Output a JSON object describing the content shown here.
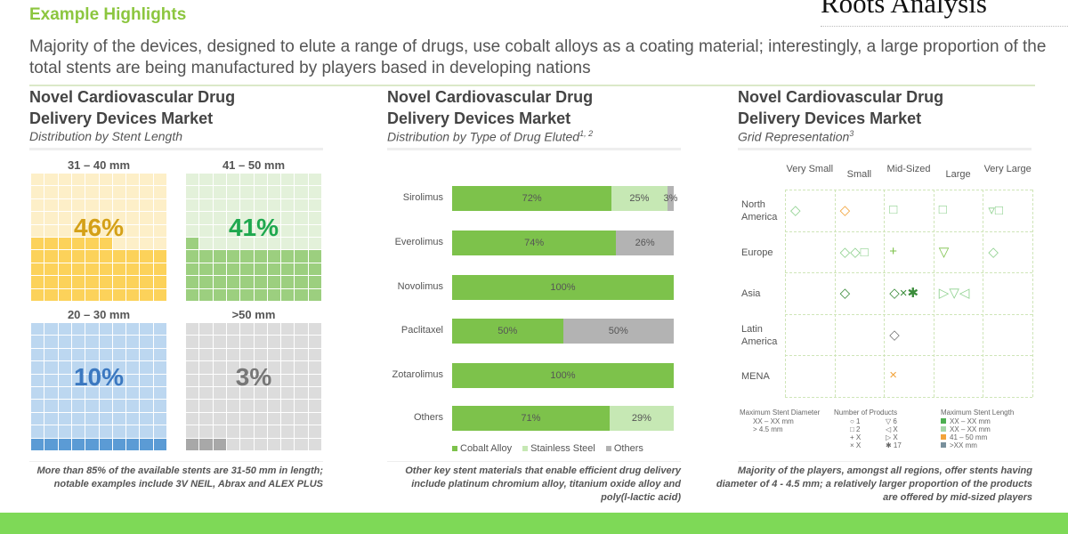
{
  "header": {
    "title": "Example Highlights",
    "logo_text": "Roots Analysis",
    "lead": "Majority of the devices, designed to elute a range of drugs, use cobalt alloys as a coating material; interestingly, a large proportion of the total stents are being manufactured by players based in developing nations"
  },
  "panels": [
    {
      "title1": "Novel Cardiovascular Drug",
      "title2": "Delivery Devices Market",
      "subtitle": "Distribution by Stent Length",
      "sup": "",
      "note": "More than 85% of the available stents are 31-50 mm in length; notable examples include 3V NEIL, Abrax and ALEX PLUS"
    },
    {
      "title1": "Novel Cardiovascular Drug",
      "title2": "Delivery Devices Market",
      "subtitle": "Distribution by Type of Drug Eluted",
      "sup": "1, 2",
      "note": "Other key stent materials that enable efficient drug delivery include platinum chromium alloy, titanium oxide alloy and poly(l-lactic acid)"
    },
    {
      "title1": "Novel Cardiovascular Drug",
      "title2": "Delivery Devices Market",
      "subtitle": "Grid Representation",
      "sup": "3",
      "note": "Majority of the players, amongst all regions, offer stents having diameter of 4 - 4.5 mm; a relatively larger proportion of the products are offered by mid-sized players"
    }
  ],
  "chart_data": [
    {
      "type": "waffle",
      "title": "Distribution by Stent Length",
      "categories": [
        {
          "label": "31 – 40 mm",
          "value": 46,
          "text": "46%",
          "fill": "#fcd25a",
          "empty": "#fdefc8",
          "textColor": "#d4a017"
        },
        {
          "label": "41 – 50 mm",
          "value": 41,
          "text": "41%",
          "fill": "#9ccf7f",
          "empty": "#e3f1da",
          "textColor": "#1fa84f"
        },
        {
          "label": "20 – 30 mm",
          "value": 10,
          "text": "10%",
          "fill": "#5b9bd5",
          "empty": "#bcd7f0",
          "textColor": "#3b78c0"
        },
        {
          "label": ">50 mm",
          "value": 3,
          "text": "3%",
          "fill": "#a8a8a8",
          "empty": "#dcdcdc",
          "textColor": "#777777"
        }
      ]
    },
    {
      "type": "bar",
      "stacked": true,
      "orientation": "horizontal",
      "title": "Distribution by Type of Drug Eluted",
      "categories": [
        "Sirolimus",
        "Everolimus",
        "Novolimus",
        "Paclitaxel",
        "Zotarolimus",
        "Others"
      ],
      "series": [
        {
          "name": "Cobalt Alloy",
          "color": "#7dc24b",
          "values": [
            72,
            74,
            100,
            50,
            100,
            71
          ]
        },
        {
          "name": "Stainless Steel",
          "color": "#c6e8b4",
          "values": [
            25,
            0,
            0,
            0,
            0,
            29
          ]
        },
        {
          "name": "Others",
          "color": "#b3b3b3",
          "values": [
            3,
            26,
            0,
            50,
            0,
            0
          ]
        }
      ],
      "xlim": [
        0,
        100
      ]
    },
    {
      "type": "grid",
      "title": "Grid Representation",
      "columns": [
        "Very Small",
        "Small",
        "Mid-Sized",
        "Large",
        "Very Large"
      ],
      "rows": [
        "North America",
        "Europe",
        "Asia",
        "Latin America",
        "MENA"
      ],
      "cells": [
        [
          "◇",
          "◇",
          "□",
          "□",
          "▿□"
        ],
        [
          "",
          "◇◇□",
          "+",
          "▽",
          "◇"
        ],
        [
          "",
          "◇",
          "◇×✱",
          "▷▽◁",
          ""
        ],
        [
          "",
          "",
          "◇",
          "",
          ""
        ],
        [
          "",
          "",
          "×",
          "",
          ""
        ]
      ],
      "cell_colors": [
        [
          "#8fd18f",
          "#f2a33a",
          "#8fd18f",
          "#8fd18f",
          "#8fd18f"
        ],
        [
          "",
          "#8fd18f",
          "#7dc24b",
          "#7dc24b",
          "#8fd18f"
        ],
        [
          "",
          "#3c8d3c",
          "#3c8d3c",
          "#8fd18f",
          ""
        ],
        [
          "",
          "",
          "#777777",
          "",
          ""
        ],
        [
          "",
          "",
          "#f2a33a",
          "",
          ""
        ]
      ],
      "legend": {
        "diameter_title": "Maximum Stent Diameter",
        "diameter": [
          "XX – XX mm",
          "> 4.5 mm"
        ],
        "products_title": "Number of Products",
        "products": [
          "○ 1",
          "□ 2",
          "+ X",
          "× X",
          "▽ 6",
          "◁ X",
          "▷ X",
          "✱ 17"
        ],
        "length_title": "Maximum Stent Length",
        "length": [
          {
            "label": "XX – XX mm",
            "color": "#4caf50"
          },
          {
            "label": "XX – XX mm",
            "color": "#a5d6a7"
          },
          {
            "label": "41 – 50 mm",
            "color": "#f2a33a"
          },
          {
            "label": ">XX mm",
            "color": "#78909c"
          }
        ]
      }
    }
  ]
}
